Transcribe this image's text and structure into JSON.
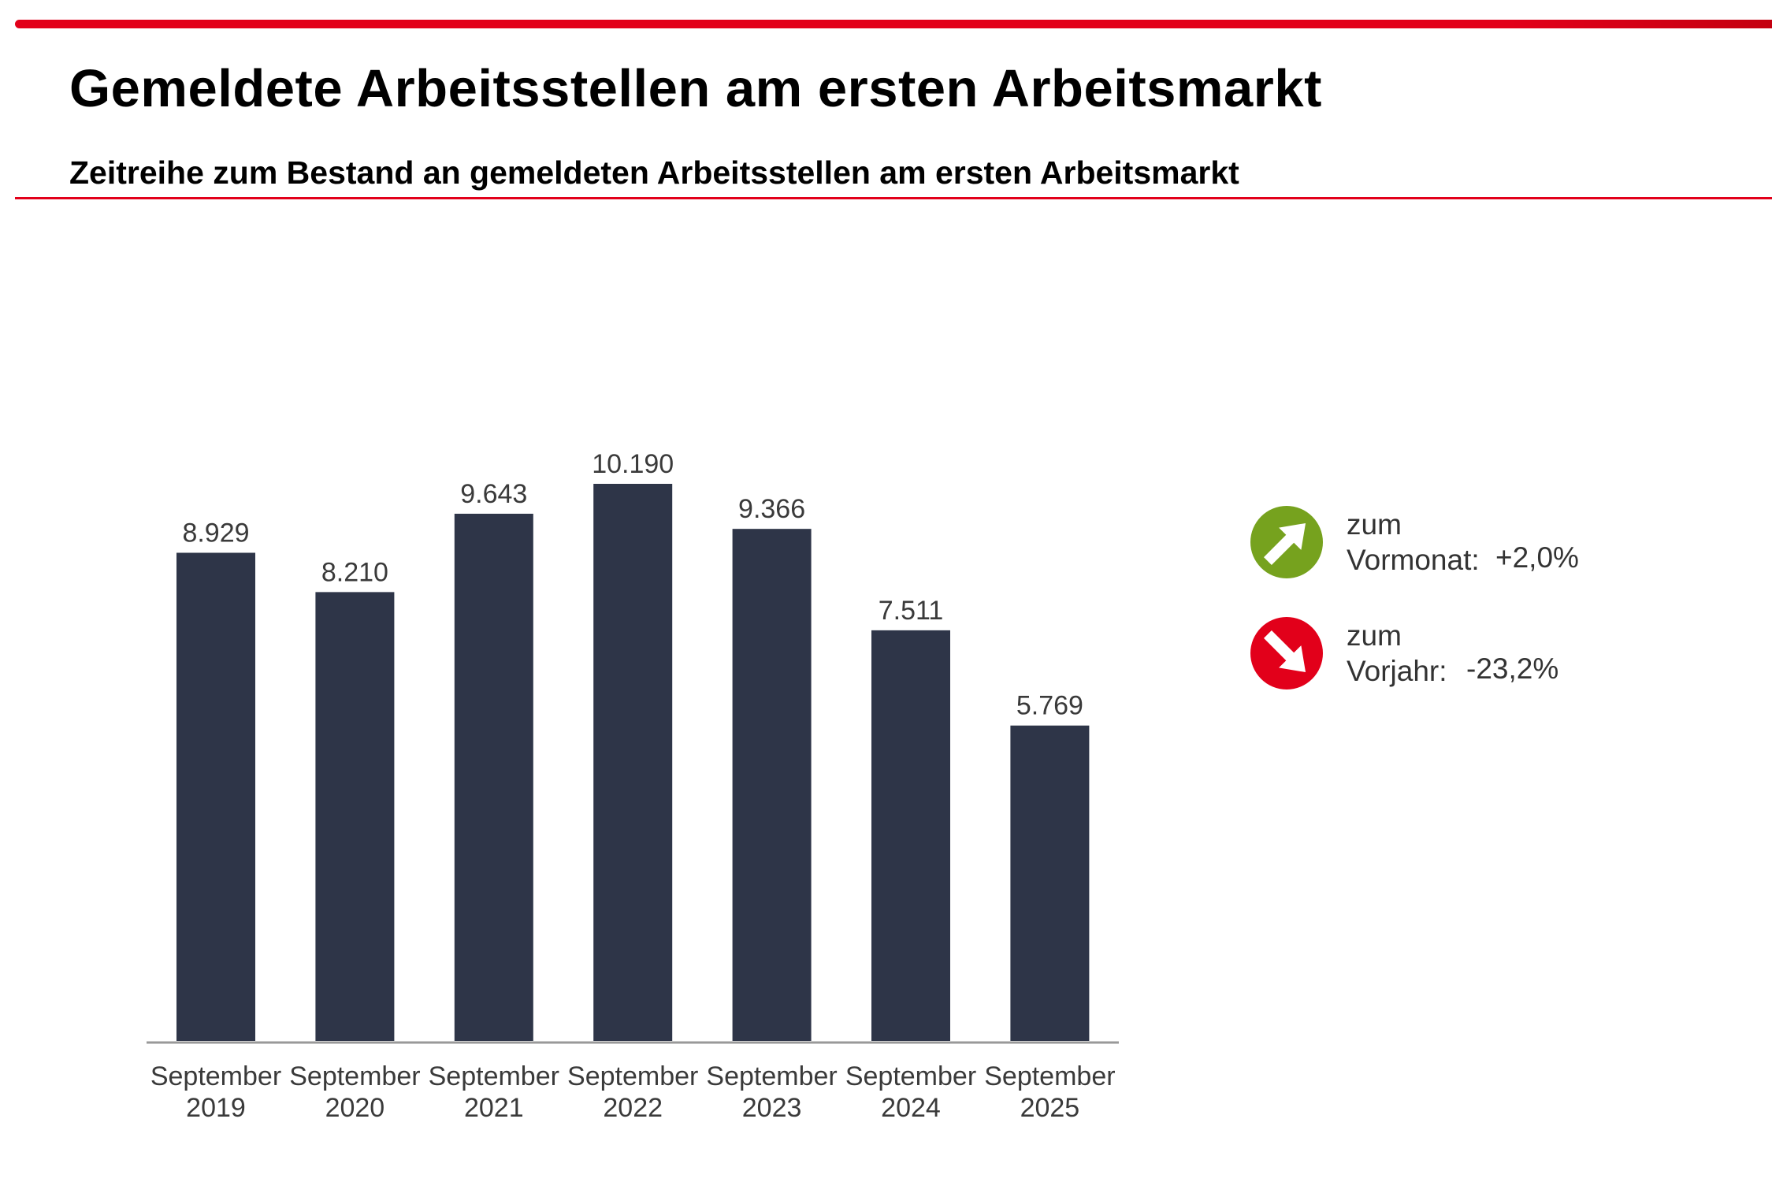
{
  "title": "Gemeldete Arbeitsstellen am ersten Arbeitsmarkt",
  "subtitle": "Zeitreihe zum Bestand an gemeldeten Arbeitsstellen am ersten Arbeitsmarkt",
  "colors": {
    "accent": "#e2001a",
    "bar": "#2e3548",
    "up": "#76a21e",
    "down": "#e2001a"
  },
  "chart_data": {
    "type": "bar",
    "categories": [
      [
        "September",
        "2019"
      ],
      [
        "September",
        "2020"
      ],
      [
        "September",
        "2021"
      ],
      [
        "September",
        "2022"
      ],
      [
        "September",
        "2023"
      ],
      [
        "September",
        "2024"
      ],
      [
        "September",
        "2025"
      ]
    ],
    "values": [
      8929,
      8210,
      9643,
      10190,
      9366,
      7511,
      5769
    ],
    "value_labels": [
      "8.929",
      "8.210",
      "9.643",
      "10.190",
      "9.366",
      "7.511",
      "5.769"
    ],
    "ylim": [
      0,
      10190
    ],
    "grid": false,
    "xlabel": "",
    "ylabel": ""
  },
  "legend": [
    {
      "icon": "arrow-up-right-icon",
      "line1": "zum",
      "line2": "Vormonat:",
      "value": "+2,0%"
    },
    {
      "icon": "arrow-down-right-icon",
      "line1": "zum",
      "line2": "Vorjahr:",
      "value": "-23,2%"
    }
  ]
}
